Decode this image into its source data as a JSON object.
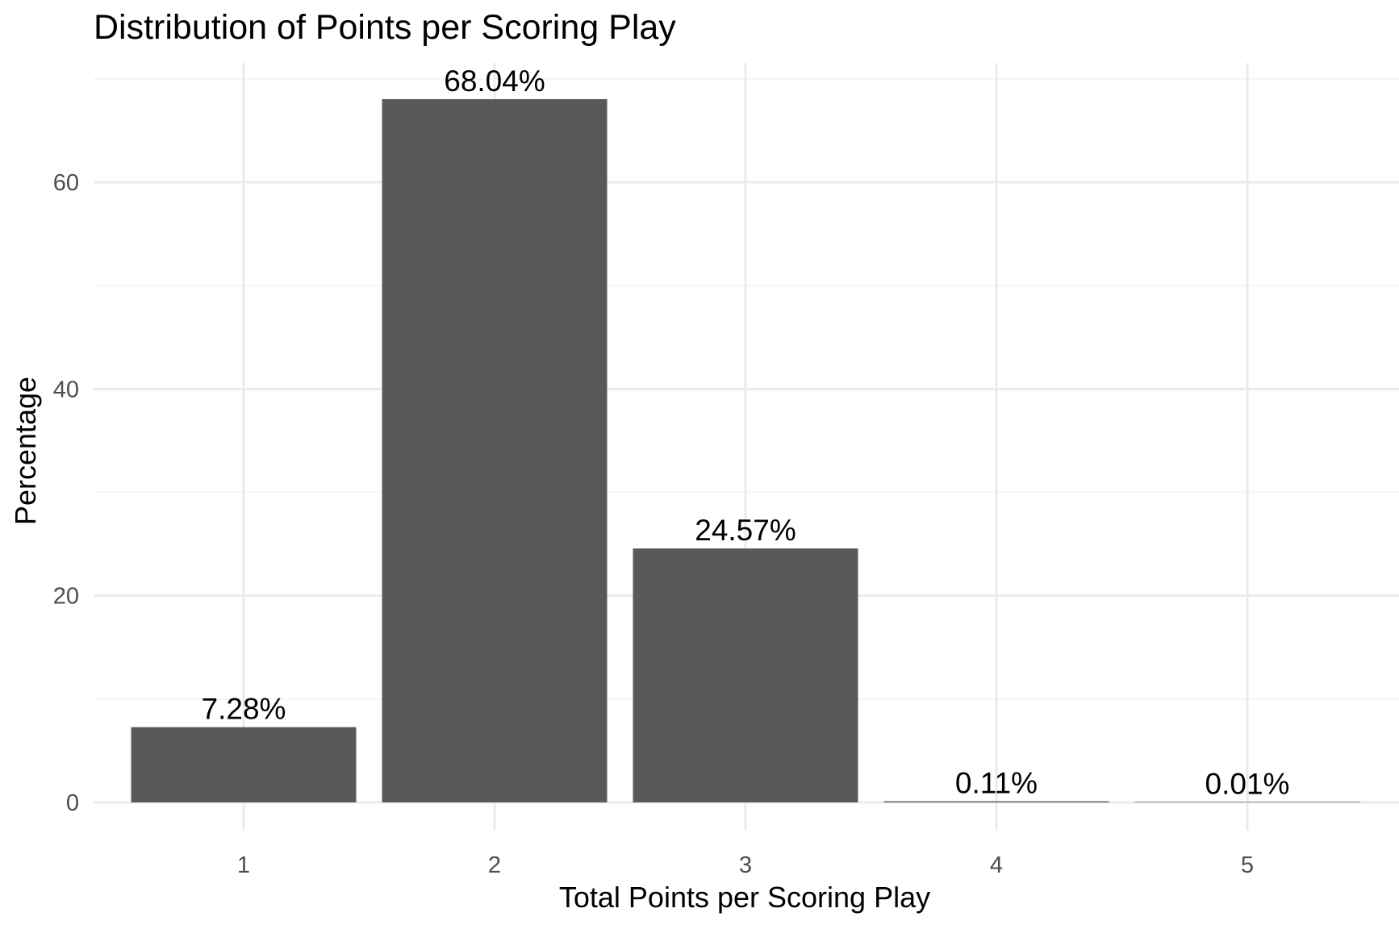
{
  "chart_data": {
    "type": "bar",
    "title": "Distribution of Points per Scoring Play",
    "xlabel": "Total Points per Scoring Play",
    "ylabel": "Percentage",
    "categories": [
      "1",
      "2",
      "3",
      "4",
      "5"
    ],
    "values": [
      7.28,
      68.04,
      24.57,
      0.11,
      0.01
    ],
    "data_labels": [
      "7.28%",
      "68.04%",
      "24.57%",
      "0.11%",
      "0.01%"
    ],
    "y_ticks": [
      0,
      20,
      40,
      60
    ],
    "ylim": [
      0,
      70
    ],
    "grid": true,
    "legend": "none",
    "colors": {
      "bar": "#595959",
      "grid_major": "#ebebeb",
      "grid_minor": "#f4f4f4",
      "tick_text": "#4d4d4d",
      "label_text": "#000000"
    }
  }
}
